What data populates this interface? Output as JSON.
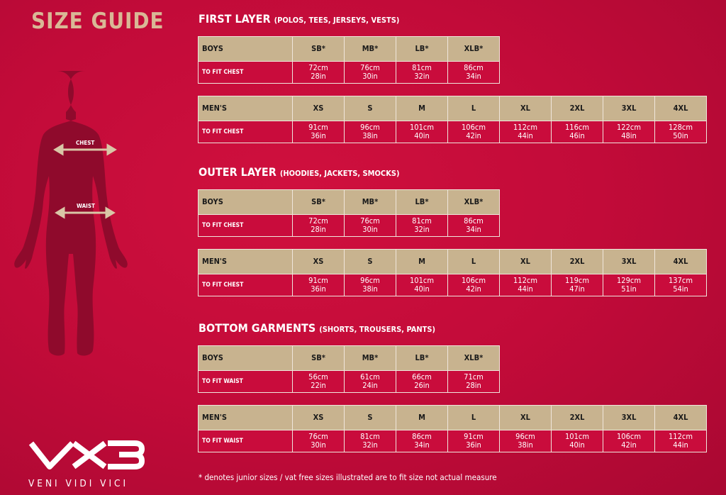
{
  "title": "SIZE GUIDE",
  "figure": {
    "chest_label": "CHEST",
    "waist_label": "WAIST"
  },
  "brand": {
    "logo": "VX3",
    "tagline": "VENI VIDI VICI"
  },
  "colors": {
    "background": "#c20b39",
    "header_row": "#c8b38f",
    "title": "#d9b896"
  },
  "sections": [
    {
      "title": "FIRST LAYER",
      "subtitle": "(POLOS, TEES, JERSEYS, VESTS)",
      "tables": [
        {
          "header": "BOYS",
          "row_label": "TO FIT CHEST",
          "sizes": [
            "SB*",
            "MB*",
            "LB*",
            "XLB*"
          ],
          "cm": [
            "72cm",
            "76cm",
            "81cm",
            "86cm"
          ],
          "in": [
            "28in",
            "30in",
            "32in",
            "34in"
          ]
        },
        {
          "header": "MEN'S",
          "row_label": "TO FIT CHEST",
          "sizes": [
            "XS",
            "S",
            "M",
            "L",
            "XL",
            "2XL",
            "3XL",
            "4XL"
          ],
          "cm": [
            "91cm",
            "96cm",
            "101cm",
            "106cm",
            "112cm",
            "116cm",
            "122cm",
            "128cm"
          ],
          "in": [
            "36in",
            "38in",
            "40in",
            "42in",
            "44in",
            "46in",
            "48in",
            "50in"
          ]
        }
      ]
    },
    {
      "title": "OUTER LAYER",
      "subtitle": "(HOODIES, JACKETS, SMOCKS)",
      "tables": [
        {
          "header": "BOYS",
          "row_label": "TO FIT CHEST",
          "sizes": [
            "SB*",
            "MB*",
            "LB*",
            "XLB*"
          ],
          "cm": [
            "72cm",
            "76cm",
            "81cm",
            "86cm"
          ],
          "in": [
            "28in",
            "30in",
            "32in",
            "34in"
          ]
        },
        {
          "header": "MEN'S",
          "row_label": "TO FIT CHEST",
          "sizes": [
            "XS",
            "S",
            "M",
            "L",
            "XL",
            "2XL",
            "3XL",
            "4XL"
          ],
          "cm": [
            "91cm",
            "96cm",
            "101cm",
            "106cm",
            "112cm",
            "119cm",
            "129cm",
            "137cm"
          ],
          "in": [
            "36in",
            "38in",
            "40in",
            "42in",
            "44in",
            "47in",
            "51in",
            "54in"
          ]
        }
      ]
    },
    {
      "title": "BOTTOM GARMENTS",
      "subtitle": "(SHORTS, TROUSERS, PANTS)",
      "tables": [
        {
          "header": "BOYS",
          "row_label": "TO FIT WAIST",
          "sizes": [
            "SB*",
            "MB*",
            "LB*",
            "XLB*"
          ],
          "cm": [
            "56cm",
            "61cm",
            "66cm",
            "71cm"
          ],
          "in": [
            "22in",
            "24in",
            "26in",
            "28in"
          ]
        },
        {
          "header": "MEN'S",
          "row_label": "TO FIT WAIST",
          "sizes": [
            "XS",
            "S",
            "M",
            "L",
            "XL",
            "2XL",
            "3XL",
            "4XL"
          ],
          "cm": [
            "76cm",
            "81cm",
            "86cm",
            "91cm",
            "96cm",
            "101cm",
            "106cm",
            "112cm"
          ],
          "in": [
            "30in",
            "32in",
            "34in",
            "36in",
            "38in",
            "40in",
            "42in",
            "44in"
          ]
        }
      ]
    }
  ],
  "footnote": "* denotes junior sizes / vat free sizes illustrated are to fit size not actual measure"
}
